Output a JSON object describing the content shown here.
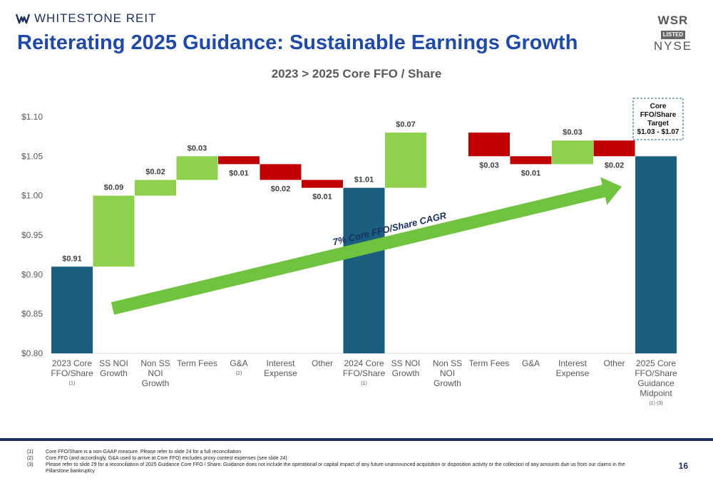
{
  "header": {
    "logo_text": "WHITESTONE REIT",
    "badge_top": "WSR",
    "badge_middle": "LISTED",
    "badge_bottom": "NYSE",
    "title": "Reiterating 2025 Guidance:  Sustainable Earnings Growth"
  },
  "chart_data": {
    "type": "bar",
    "subtype": "waterfall",
    "title": "2023 > 2025 Core FFO / Share",
    "y_ticks": [
      "$0.80",
      "$0.85",
      "$0.90",
      "$0.95",
      "$1.00",
      "$1.05",
      "$1.10"
    ],
    "ylim": [
      0.8,
      1.1
    ],
    "grid": false,
    "colors": {
      "total": "#1a5e80",
      "increase": "#8fd14f",
      "decrease": "#c00000"
    },
    "categories": [
      {
        "label": [
          "2023 Core",
          "FFO/Share"
        ],
        "note": "(1)",
        "kind": "total",
        "start": 0.8,
        "end": 0.91,
        "value_label": "$0.91"
      },
      {
        "label": [
          "SS NOI",
          "Growth"
        ],
        "note": "",
        "kind": "increase",
        "start": 0.91,
        "end": 1.0,
        "value_label": "$0.09"
      },
      {
        "label": [
          "Non SS",
          "NOI",
          "Growth"
        ],
        "note": "",
        "kind": "increase",
        "start": 1.0,
        "end": 1.02,
        "value_label": "$0.02"
      },
      {
        "label": [
          "Term Fees"
        ],
        "note": "",
        "kind": "increase",
        "start": 1.02,
        "end": 1.05,
        "value_label": "$0.03"
      },
      {
        "label": [
          "G&A"
        ],
        "note": "(2)",
        "kind": "decrease",
        "start": 1.05,
        "end": 1.04,
        "value_label": "$0.01"
      },
      {
        "label": [
          "Interest",
          "Expense"
        ],
        "note": "",
        "kind": "decrease",
        "start": 1.04,
        "end": 1.02,
        "value_label": "$0.02"
      },
      {
        "label": [
          "Other"
        ],
        "note": "",
        "kind": "decrease",
        "start": 1.02,
        "end": 1.01,
        "value_label": "$0.01"
      },
      {
        "label": [
          "2024 Core",
          "FFO/Share"
        ],
        "note": "(1)",
        "kind": "total",
        "start": 0.8,
        "end": 1.01,
        "value_label": "$1.01"
      },
      {
        "label": [
          "SS NOI",
          "Growth"
        ],
        "note": "",
        "kind": "increase",
        "start": 1.01,
        "end": 1.08,
        "value_label": "$0.07"
      },
      {
        "label": [
          "Non SS",
          "NOI",
          "Growth"
        ],
        "note": "",
        "kind": "increase",
        "start": 1.08,
        "end": 1.08,
        "value_label": ""
      },
      {
        "label": [
          "Term Fees"
        ],
        "note": "",
        "kind": "decrease",
        "start": 1.08,
        "end": 1.05,
        "value_label": "$0.03"
      },
      {
        "label": [
          "G&A"
        ],
        "note": "",
        "kind": "decrease",
        "start": 1.05,
        "end": 1.04,
        "value_label": "$0.01"
      },
      {
        "label": [
          "Interest",
          "Expense"
        ],
        "note": "",
        "kind": "increase",
        "start": 1.04,
        "end": 1.07,
        "value_label": "$0.03"
      },
      {
        "label": [
          "Other"
        ],
        "note": "",
        "kind": "decrease",
        "start": 1.07,
        "end": 1.05,
        "value_label": "$0.02"
      },
      {
        "label": [
          "2025 Core",
          "FFO/Share",
          "Guidance",
          "Midpoint"
        ],
        "note": "(1) (3)",
        "kind": "total",
        "start": 0.8,
        "end": 1.05,
        "value_label": ""
      }
    ],
    "annotations": {
      "arrow_text": "7% Core FFO/Share CAGR",
      "target_box": [
        "Core",
        "FFO/Share",
        "Target",
        "$1.03 - $1.07"
      ]
    }
  },
  "footnotes": [
    {
      "n": "(1)",
      "text": "Core FFO/Share is a non-GAAP measure.  Please refer to slide 24 for a full reconciliation"
    },
    {
      "n": "(2)",
      "text": "Core FFO (and accordingly, G&A used to arrive at Core FFO) excludes proxy contest expenses (see slide 24)"
    },
    {
      "n": "(3)",
      "text": "Please refer to slide 29 for a reconciliation of 2025 Guidance Core FFO / Share. Guidance does not include the operational or capital impact of any future unannounced acquisition or disposition activity or the collection of any amounts due us from our claims in the Pillarstone bankruptcy"
    }
  ],
  "page_number": "16"
}
